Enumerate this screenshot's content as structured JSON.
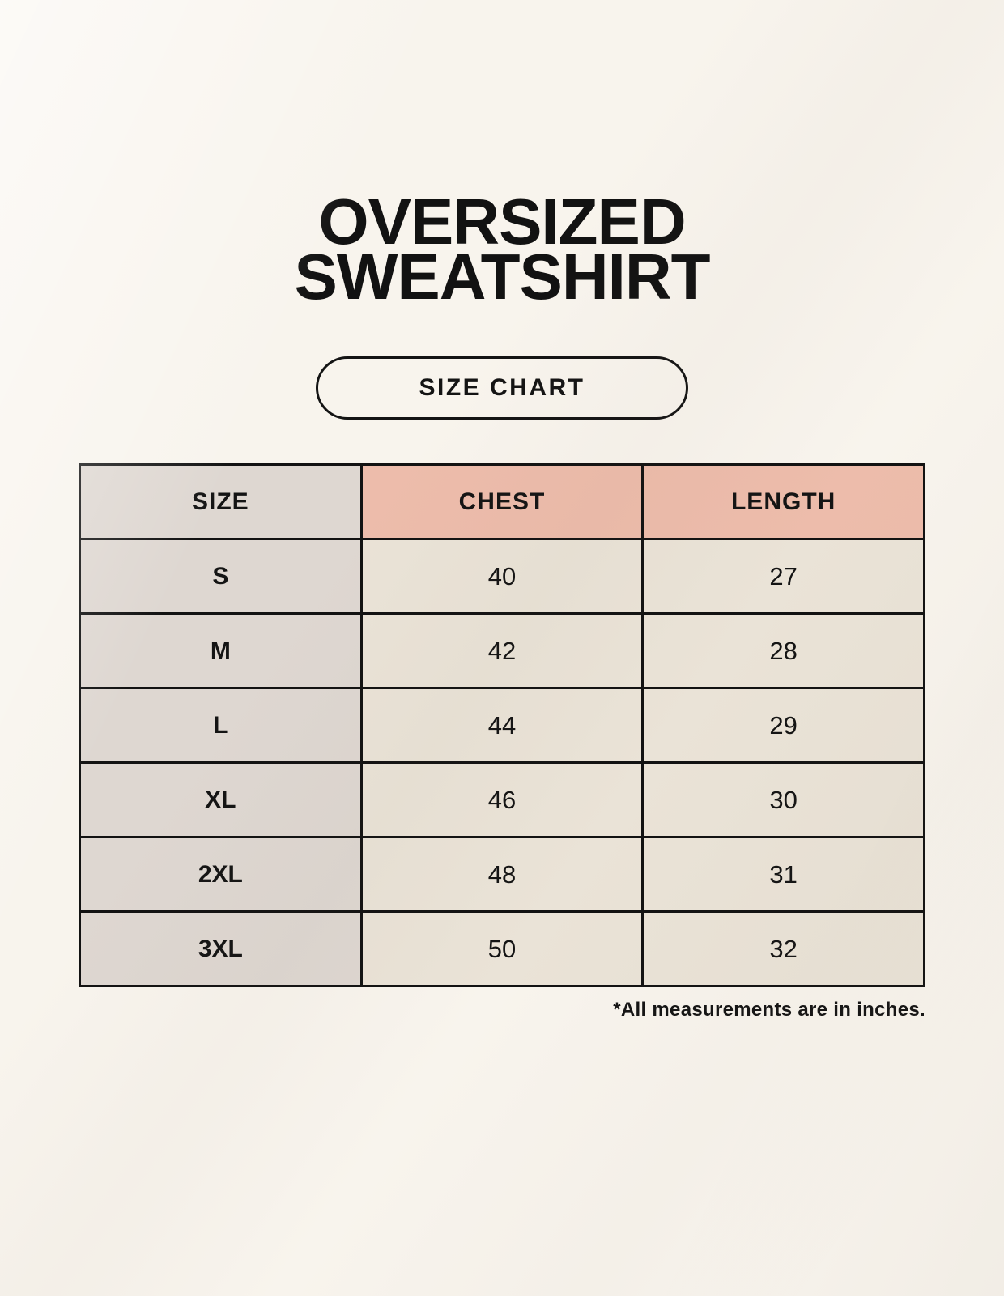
{
  "title": {
    "line1": "OVERSIZED",
    "line2": "SWEATSHIRT"
  },
  "size_chart_button": {
    "label": "SIZE CHART"
  },
  "table": {
    "headers": [
      "SIZE",
      "CHEST",
      "LENGTH"
    ],
    "rows": [
      {
        "size": "S",
        "chest": "40",
        "length": "27"
      },
      {
        "size": "M",
        "chest": "42",
        "length": "28"
      },
      {
        "size": "L",
        "chest": "44",
        "length": "29"
      },
      {
        "size": "XL",
        "chest": "46",
        "length": "30"
      },
      {
        "size": "2XL",
        "chest": "48",
        "length": "31"
      },
      {
        "size": "3XL",
        "chest": "50",
        "length": "32"
      }
    ]
  },
  "footnote": "*All measurements are in inches.",
  "colors": {
    "background": "#f8f4ed",
    "accent_pink": "#edbcab",
    "size_column_gray": "#ded7d1",
    "value_cell_cream": "#eae3d7",
    "border_black": "#121212",
    "text_black": "#141414"
  },
  "chart_data": {
    "type": "table",
    "title": "OVERSIZED SWEATSHIRT — SIZE CHART",
    "columns": [
      "SIZE",
      "CHEST",
      "LENGTH"
    ],
    "rows": [
      [
        "S",
        40,
        27
      ],
      [
        "M",
        42,
        28
      ],
      [
        "L",
        44,
        29
      ],
      [
        "XL",
        46,
        30
      ],
      [
        "2XL",
        48,
        31
      ],
      [
        "3XL",
        50,
        32
      ]
    ],
    "units": "inches",
    "note": "*All measurements are in inches."
  }
}
